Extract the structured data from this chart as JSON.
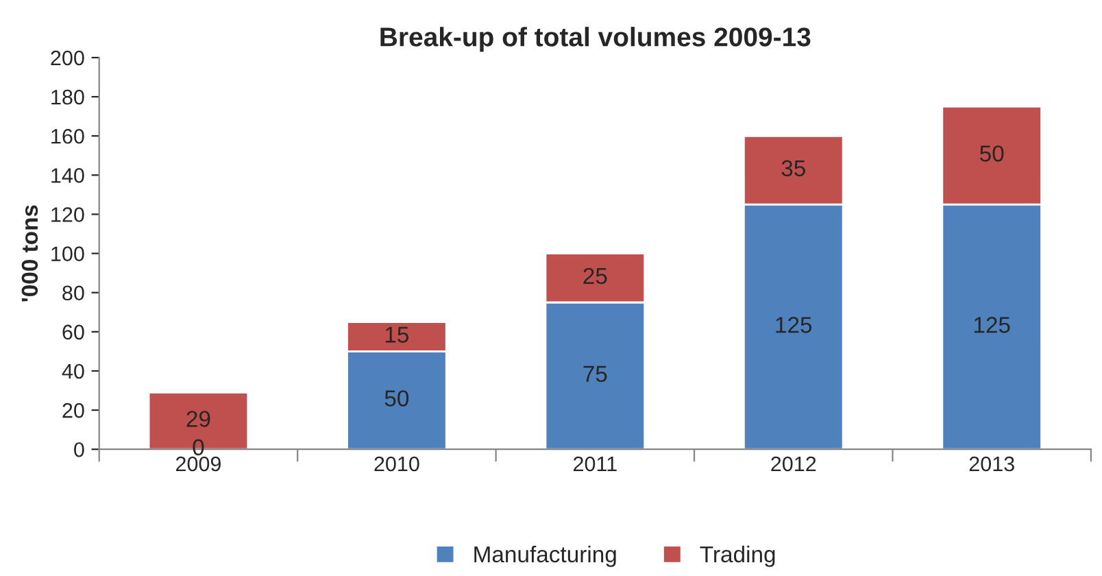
{
  "chart_data": {
    "type": "bar",
    "title": "Break-up of total volumes 2009-13",
    "ylabel": "'000 tons",
    "categories": [
      "2009",
      "2010",
      "2011",
      "2012",
      "2013"
    ],
    "series": [
      {
        "name": "Manufacturing",
        "color": "#4f81bd",
        "values": [
          0,
          50,
          75,
          125,
          125
        ]
      },
      {
        "name": "Trading",
        "color": "#c0504d",
        "values": [
          29,
          15,
          25,
          35,
          50
        ]
      }
    ],
    "stacked": true,
    "data_labels": true,
    "ylim": [
      0,
      200
    ],
    "yticks": [
      0,
      20,
      40,
      60,
      80,
      100,
      120,
      140,
      160,
      180,
      200
    ],
    "grid": false,
    "legend": "bottom"
  }
}
